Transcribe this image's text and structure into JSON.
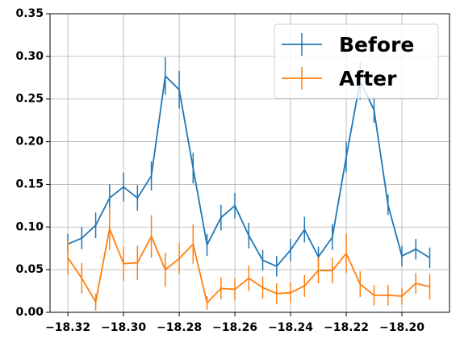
{
  "chart_data": {
    "type": "line",
    "x": [
      -18.32,
      -18.315,
      -18.31,
      -18.305,
      -18.3,
      -18.295,
      -18.29,
      -18.285,
      -18.28,
      -18.275,
      -18.27,
      -18.265,
      -18.26,
      -18.255,
      -18.25,
      -18.245,
      -18.24,
      -18.235,
      -18.23,
      -18.225,
      -18.22,
      -18.215,
      -18.21,
      -18.205,
      -18.2,
      -18.195,
      -18.19
    ],
    "series": [
      {
        "name": "Before",
        "color": "#1f77b4",
        "values": [
          0.08,
          0.087,
          0.102,
          0.134,
          0.147,
          0.134,
          0.16,
          0.277,
          0.261,
          0.169,
          0.079,
          0.111,
          0.125,
          0.09,
          0.061,
          0.054,
          0.073,
          0.097,
          0.065,
          0.088,
          0.182,
          0.271,
          0.237,
          0.126,
          0.066,
          0.074,
          0.064
        ],
        "errors": [
          0.012,
          0.013,
          0.015,
          0.016,
          0.017,
          0.015,
          0.017,
          0.022,
          0.022,
          0.018,
          0.013,
          0.015,
          0.015,
          0.015,
          0.012,
          0.012,
          0.013,
          0.015,
          0.012,
          0.015,
          0.018,
          0.022,
          0.015,
          0.012,
          0.012,
          0.012,
          0.012
        ]
      },
      {
        "name": "After",
        "color": "#ff7f0e",
        "values": [
          0.064,
          0.04,
          0.012,
          0.098,
          0.057,
          0.058,
          0.089,
          0.05,
          0.063,
          0.08,
          0.011,
          0.028,
          0.027,
          0.04,
          0.029,
          0.022,
          0.023,
          0.031,
          0.049,
          0.049,
          0.069,
          0.033,
          0.02,
          0.02,
          0.019,
          0.034,
          0.03
        ],
        "errors": [
          0.02,
          0.018,
          0.01,
          0.025,
          0.02,
          0.02,
          0.025,
          0.02,
          0.018,
          0.023,
          0.008,
          0.013,
          0.013,
          0.015,
          0.013,
          0.012,
          0.012,
          0.013,
          0.015,
          0.015,
          0.023,
          0.015,
          0.012,
          0.012,
          0.01,
          0.012,
          0.015
        ]
      }
    ],
    "xlim": [
      -18.3264,
      -18.1829
    ],
    "ylim": [
      0,
      0.35
    ],
    "xticks": [
      {
        "value": -18.32,
        "label": "−18.32"
      },
      {
        "value": -18.3,
        "label": "−18.30"
      },
      {
        "value": -18.28,
        "label": "−18.28"
      },
      {
        "value": -18.26,
        "label": "−18.26"
      },
      {
        "value": -18.24,
        "label": "−18.24"
      },
      {
        "value": -18.22,
        "label": "−18.22"
      },
      {
        "value": -18.2,
        "label": "−18.20"
      }
    ],
    "yticks": [
      {
        "value": 0,
        "label": "0.00"
      },
      {
        "value": 0.05,
        "label": "0.05"
      },
      {
        "value": 0.1,
        "label": "0.10"
      },
      {
        "value": 0.15,
        "label": "0.15"
      },
      {
        "value": 0.2,
        "label": "0.20"
      },
      {
        "value": 0.25,
        "label": "0.25"
      },
      {
        "value": 0.3,
        "label": "0.30"
      },
      {
        "value": 0.35,
        "label": "0.35"
      }
    ],
    "grid": true,
    "legend": "upper right"
  }
}
